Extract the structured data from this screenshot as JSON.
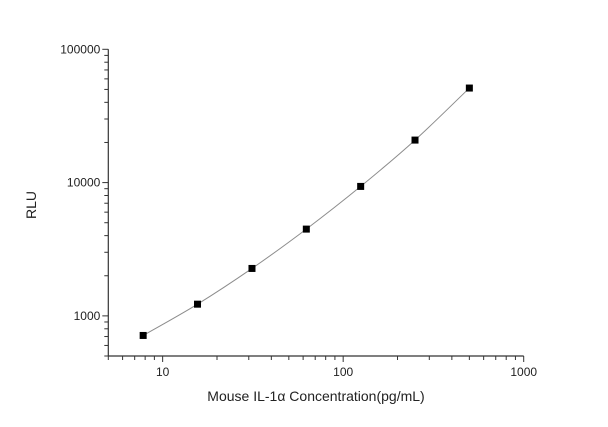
{
  "chart_data": {
    "type": "scatter",
    "title": "",
    "xlabel": "Mouse IL-1α  Concentration(pg/mL)",
    "ylabel": "RLU",
    "x_scale": "log",
    "y_scale": "log",
    "xlim": [
      5,
      1000
    ],
    "ylim": [
      500,
      100000
    ],
    "x_ticks": [
      10,
      100,
      1000
    ],
    "x_tick_labels": [
      "10",
      "100",
      "1000"
    ],
    "y_ticks": [
      1000,
      10000,
      100000
    ],
    "y_tick_labels": [
      "1000",
      "10000",
      "100000"
    ],
    "grid": false,
    "series": [
      {
        "x": [
          7.8,
          15.6,
          31.25,
          62.5,
          125,
          250,
          500
        ],
        "y": [
          713,
          1224,
          2269,
          4477,
          9360,
          20840,
          51200
        ],
        "marker": "square",
        "fit_line": true
      }
    ],
    "colors": {
      "marker": "#000000",
      "line": "#8c8c8c",
      "axis": "#333333"
    }
  }
}
